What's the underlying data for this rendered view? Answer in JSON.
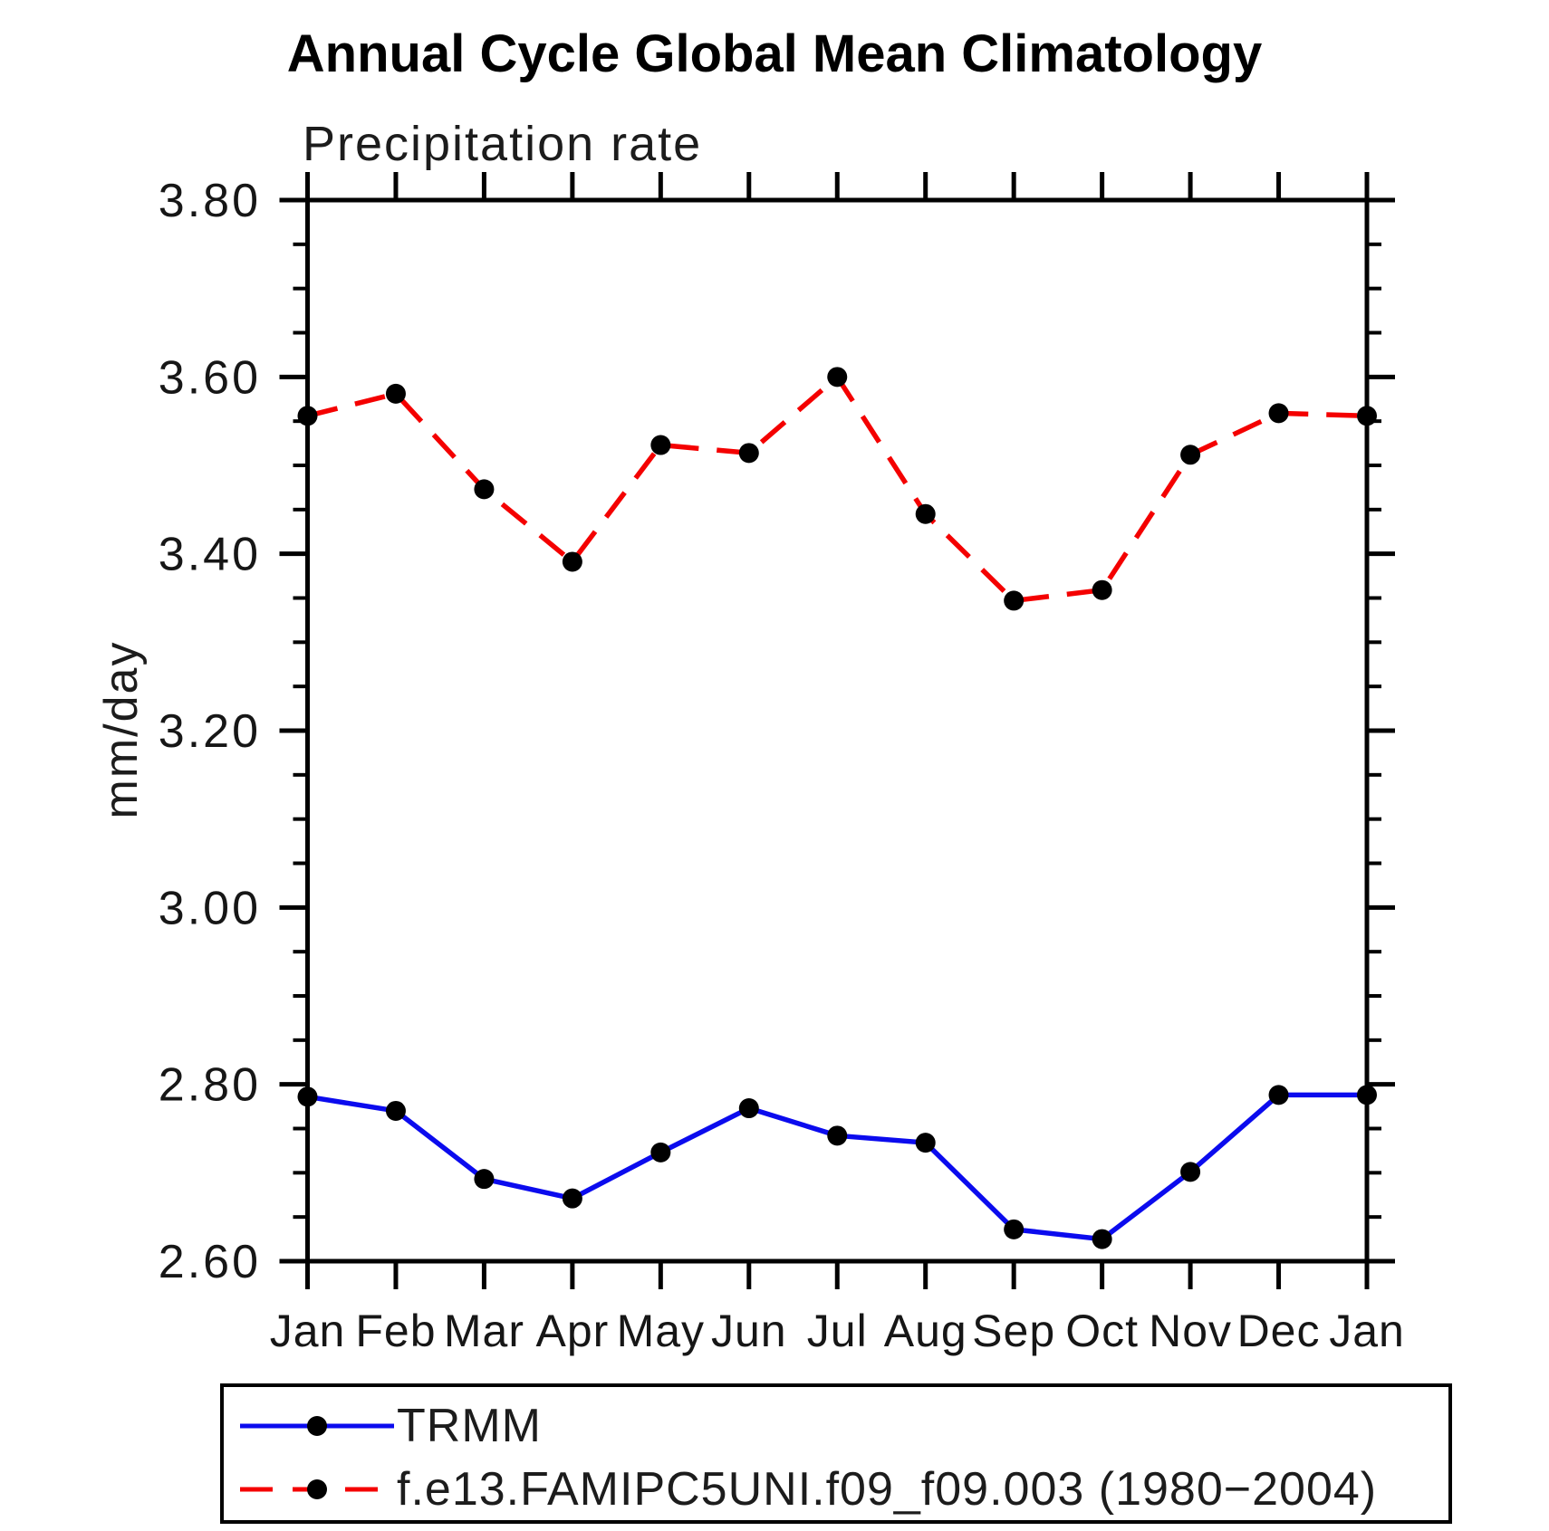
{
  "title": "Annual Cycle Global Mean Climatology",
  "subtitle": "Precipitation rate",
  "y_axis": {
    "label": "mm/day",
    "tick_labels": [
      "2.60",
      "2.80",
      "3.00",
      "3.20",
      "3.40",
      "3.60",
      "3.80"
    ]
  },
  "legend": {
    "items": [
      {
        "label": "TRMM"
      },
      {
        "label": "f.e13.FAMIPC5UNI.f09_f09.003 (1980−2004)"
      }
    ]
  },
  "chart_data": {
    "type": "line",
    "title": "Annual Cycle Global Mean Climatology",
    "subtitle": "Precipitation rate",
    "xlabel": "",
    "ylabel": "mm/day",
    "x_categories": [
      "Jan",
      "Feb",
      "Mar",
      "Apr",
      "May",
      "Jun",
      "Jul",
      "Aug",
      "Sep",
      "Oct",
      "Nov",
      "Dec",
      "Jan"
    ],
    "ylim": [
      2.6,
      3.8
    ],
    "ytick_major_step": 0.2,
    "ytick_minor_step": 0.05,
    "ytick_labels": [
      "2.60",
      "2.80",
      "3.00",
      "3.20",
      "3.40",
      "3.60",
      "3.80"
    ],
    "grid": false,
    "legend_position": "bottom-left-box",
    "frame_color": "#000000",
    "marker_color": "#000000",
    "series": [
      {
        "name": "TRMM",
        "color": "#0b0bee",
        "line_style": "solid",
        "marker": "circle",
        "values": [
          2.786,
          2.77,
          2.693,
          2.671,
          2.723,
          2.773,
          2.742,
          2.734,
          2.636,
          2.625,
          2.701,
          2.788,
          2.788
        ]
      },
      {
        "name": "f.e13.FAMIPC5UNI.f09_f09.003 (1980−2004)",
        "color": "#f40000",
        "line_style": "dashed",
        "marker": "circle",
        "values": [
          3.556,
          3.581,
          3.473,
          3.391,
          3.523,
          3.514,
          3.6,
          3.445,
          3.347,
          3.359,
          3.512,
          3.559,
          3.556
        ]
      }
    ]
  }
}
